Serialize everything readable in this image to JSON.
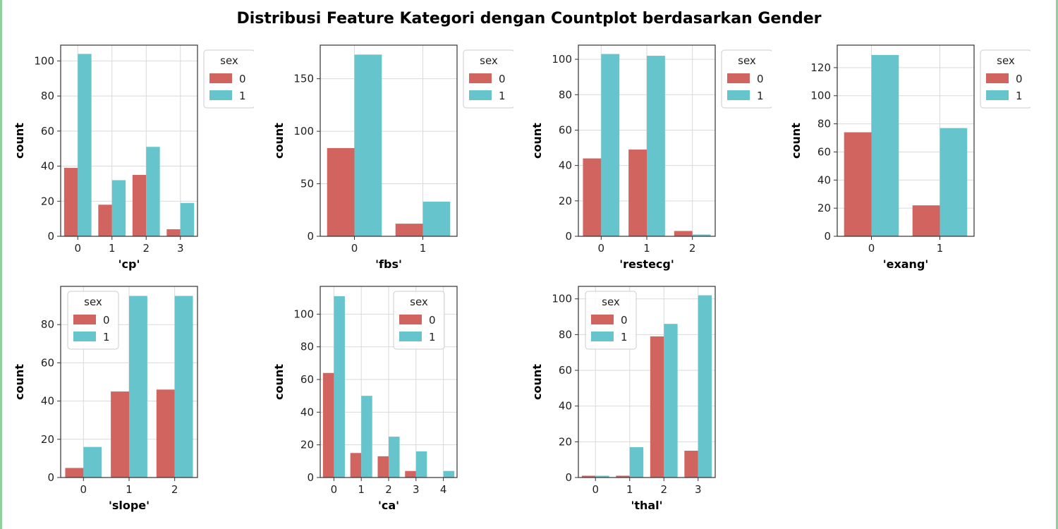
{
  "suptitle": "Distribusi Feature Kategori dengan Countplot berdasarkan Gender",
  "colors": {
    "sex0": "#d1645e",
    "sex1": "#66c5cc"
  },
  "chart_data": [
    {
      "type": "bar",
      "xlabel": "'cp'",
      "ylabel": "count",
      "categories": [
        "0",
        "1",
        "2",
        "3"
      ],
      "ylim": [
        0,
        109
      ],
      "yticks": [
        0,
        20,
        40,
        60,
        80,
        100
      ],
      "legend": {
        "title": "sex",
        "position": "top-right"
      },
      "series": [
        {
          "name": "0",
          "values": [
            39,
            18,
            35,
            4
          ]
        },
        {
          "name": "1",
          "values": [
            104,
            32,
            51,
            19
          ]
        }
      ]
    },
    {
      "type": "bar",
      "xlabel": "'fbs'",
      "ylabel": "count",
      "categories": [
        "0",
        "1"
      ],
      "ylim": [
        0,
        182
      ],
      "yticks": [
        0,
        50,
        100,
        150
      ],
      "legend": {
        "title": "sex",
        "position": "top-right"
      },
      "series": [
        {
          "name": "0",
          "values": [
            84,
            12
          ]
        },
        {
          "name": "1",
          "values": [
            173,
            33
          ]
        }
      ]
    },
    {
      "type": "bar",
      "xlabel": "'restecg'",
      "ylabel": "count",
      "categories": [
        "0",
        "1",
        "2"
      ],
      "ylim": [
        0,
        108
      ],
      "yticks": [
        0,
        20,
        40,
        60,
        80,
        100
      ],
      "legend": {
        "title": "sex",
        "position": "top-right"
      },
      "series": [
        {
          "name": "0",
          "values": [
            44,
            49,
            3
          ]
        },
        {
          "name": "1",
          "values": [
            103,
            102,
            1
          ]
        }
      ]
    },
    {
      "type": "bar",
      "xlabel": "'exang'",
      "ylabel": "count",
      "categories": [
        "0",
        "1"
      ],
      "ylim": [
        0,
        136
      ],
      "yticks": [
        0,
        20,
        40,
        60,
        80,
        100,
        120
      ],
      "legend": {
        "title": "sex",
        "position": "top-right"
      },
      "series": [
        {
          "name": "0",
          "values": [
            74,
            22
          ]
        },
        {
          "name": "1",
          "values": [
            129,
            77
          ]
        }
      ]
    },
    {
      "type": "bar",
      "xlabel": "'slope'",
      "ylabel": "count",
      "categories": [
        "0",
        "1",
        "2"
      ],
      "ylim": [
        0,
        100
      ],
      "yticks": [
        0,
        20,
        40,
        60,
        80
      ],
      "legend": {
        "title": "sex",
        "position": "top-left"
      },
      "series": [
        {
          "name": "0",
          "values": [
            5,
            45,
            46
          ]
        },
        {
          "name": "1",
          "values": [
            16,
            95,
            95
          ]
        }
      ]
    },
    {
      "type": "bar",
      "xlabel": "'ca'",
      "ylabel": "count",
      "categories": [
        "0",
        "1",
        "2",
        "3",
        "4"
      ],
      "ylim": [
        0,
        117
      ],
      "yticks": [
        0,
        20,
        40,
        60,
        80,
        100
      ],
      "legend": {
        "title": "sex",
        "position": "top-center"
      },
      "series": [
        {
          "name": "0",
          "values": [
            64,
            15,
            13,
            4,
            0
          ]
        },
        {
          "name": "1",
          "values": [
            111,
            50,
            25,
            16,
            4
          ]
        }
      ]
    },
    {
      "type": "bar",
      "xlabel": "'thal'",
      "ylabel": "count",
      "categories": [
        "0",
        "1",
        "2",
        "3"
      ],
      "ylim": [
        0,
        107
      ],
      "yticks": [
        0,
        20,
        40,
        60,
        80,
        100
      ],
      "legend": {
        "title": "sex",
        "position": "top-left"
      },
      "series": [
        {
          "name": "0",
          "values": [
            1,
            1,
            79,
            15
          ]
        },
        {
          "name": "1",
          "values": [
            1,
            17,
            86,
            102
          ]
        }
      ]
    }
  ]
}
